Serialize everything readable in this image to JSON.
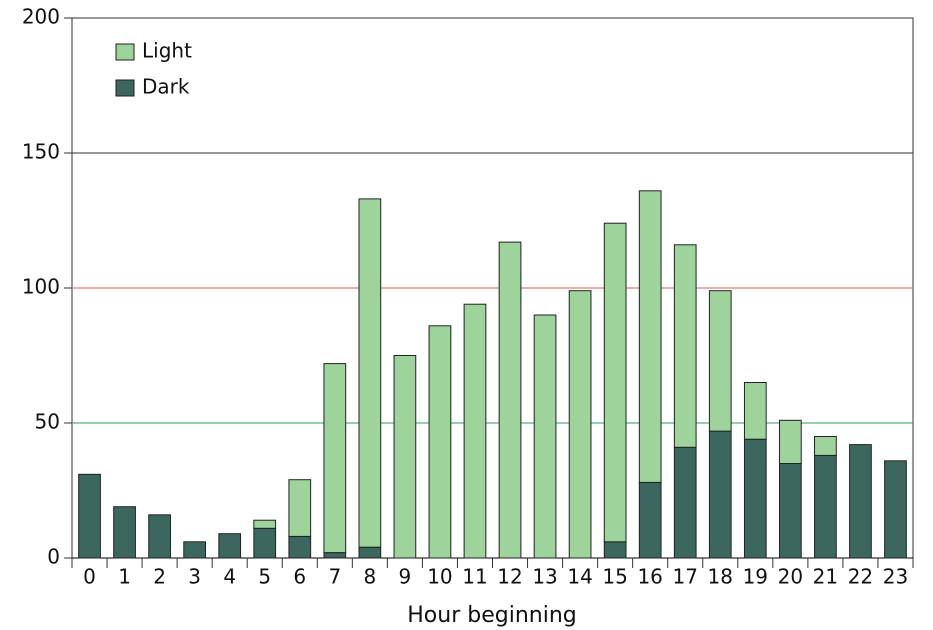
{
  "chart_data": {
    "type": "stacked_bar",
    "x_label": "Hour beginning",
    "categories": [
      "0",
      "1",
      "2",
      "3",
      "4",
      "5",
      "6",
      "7",
      "8",
      "9",
      "10",
      "11",
      "12",
      "13",
      "14",
      "15",
      "16",
      "17",
      "18",
      "19",
      "20",
      "21",
      "22",
      "23"
    ],
    "series": [
      {
        "name": "Dark",
        "color": "#3b675f",
        "values": [
          31,
          19,
          16,
          6,
          9,
          11,
          8,
          2,
          4,
          0,
          0,
          0,
          0,
          0,
          0,
          6,
          28,
          41,
          47,
          44,
          35,
          38,
          42,
          36
        ]
      },
      {
        "name": "Light",
        "color": "#9ed49b",
        "values": [
          0,
          0,
          0,
          0,
          0,
          3,
          21,
          70,
          129,
          75,
          86,
          94,
          117,
          90,
          99,
          118,
          108,
          75,
          52,
          21,
          16,
          7,
          0,
          0
        ]
      }
    ],
    "ylim": [
      0,
      200
    ],
    "yticks": [
      0,
      50,
      100,
      150,
      200
    ],
    "grid_colors": [
      "#000000",
      "#2e9e62",
      "#e35a5a",
      "#333333",
      "#333333"
    ],
    "legend": "top-left"
  }
}
